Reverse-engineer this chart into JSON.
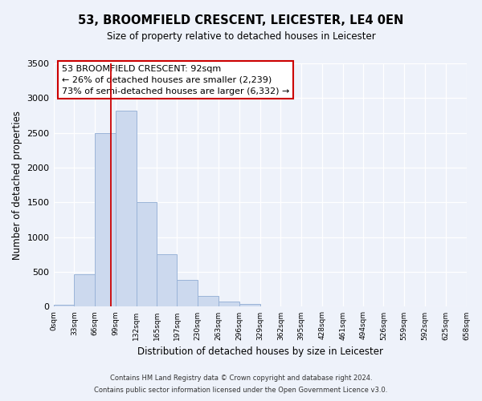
{
  "title": "53, BROOMFIELD CRESCENT, LEICESTER, LE4 0EN",
  "subtitle": "Size of property relative to detached houses in Leicester",
  "xlabel": "Distribution of detached houses by size in Leicester",
  "ylabel": "Number of detached properties",
  "bar_edges": [
    0,
    33,
    66,
    99,
    132,
    165,
    197,
    230,
    263,
    296,
    329,
    362,
    395,
    428,
    461,
    494,
    526,
    559,
    592,
    625,
    658
  ],
  "bar_heights": [
    25,
    470,
    2500,
    2820,
    1500,
    750,
    390,
    150,
    70,
    45,
    0,
    0,
    0,
    0,
    0,
    0,
    0,
    0,
    0,
    0
  ],
  "tick_labels": [
    "0sqm",
    "33sqm",
    "66sqm",
    "99sqm",
    "132sqm",
    "165sqm",
    "197sqm",
    "230sqm",
    "263sqm",
    "296sqm",
    "329sqm",
    "362sqm",
    "395sqm",
    "428sqm",
    "461sqm",
    "494sqm",
    "526sqm",
    "559sqm",
    "592sqm",
    "625sqm",
    "658sqm"
  ],
  "bar_color": "#ccd9ee",
  "bar_edge_color": "#9ab4d8",
  "property_line_x": 92,
  "property_line_color": "#cc0000",
  "annotation_line1": "53 BROOMFIELD CRESCENT: 92sqm",
  "annotation_line2": "← 26% of detached houses are smaller (2,239)",
  "annotation_line3": "73% of semi-detached houses are larger (6,332) →",
  "annotation_box_color": "#cc0000",
  "ylim": [
    0,
    3500
  ],
  "yticks": [
    0,
    500,
    1000,
    1500,
    2000,
    2500,
    3000,
    3500
  ],
  "footnote1": "Contains HM Land Registry data © Crown copyright and database right 2024.",
  "footnote2": "Contains public sector information licensed under the Open Government Licence v3.0.",
  "background_color": "#eef2fa",
  "plot_background": "#eef2fa",
  "grid_color": "#ffffff",
  "title_fontsize": 10.5,
  "subtitle_fontsize": 8.5,
  "ylabel_fontsize": 8.5,
  "xlabel_fontsize": 8.5,
  "tick_fontsize": 6.5,
  "ytick_fontsize": 8,
  "annotation_fontsize": 8,
  "footnote_fontsize": 6
}
